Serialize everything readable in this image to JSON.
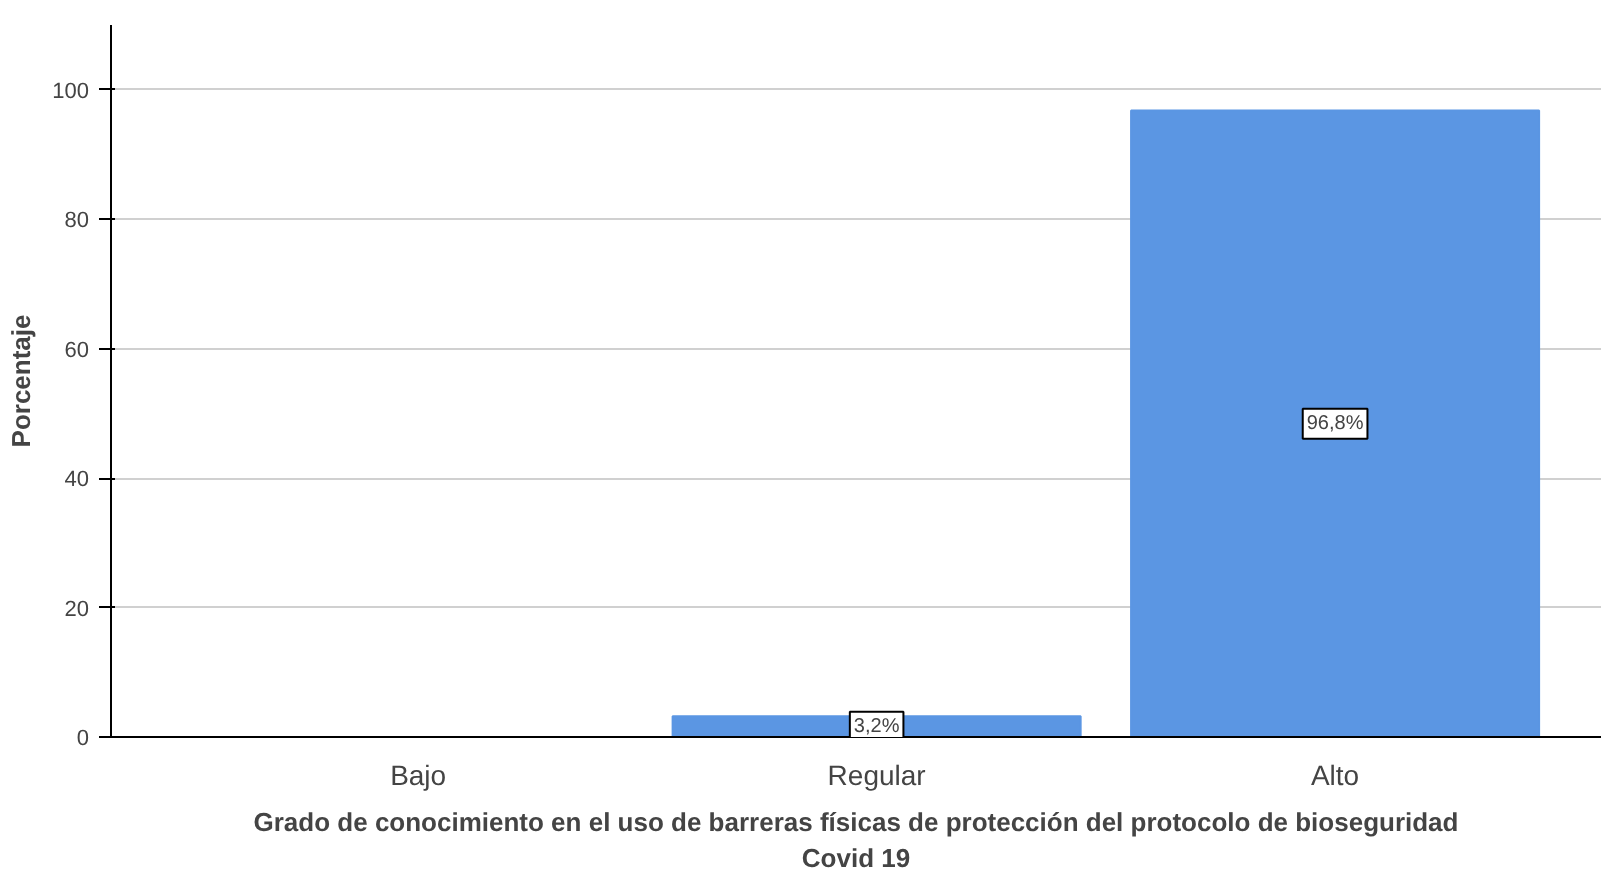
{
  "chart_data": {
    "type": "bar",
    "xlabel": "Grado de conocimiento en el uso de barreras físicas de protección del protocolo de bioseguridad\nCovid 19",
    "ylabel": "Porcentaje",
    "categories": [
      "Bajo",
      "Regular",
      "Alto"
    ],
    "values": [
      0,
      3.2,
      96.8
    ],
    "value_labels": [
      null,
      "3,2%",
      "96,8%"
    ],
    "color": "#5b96e3",
    "ylim": [
      0,
      110
    ],
    "yticks": [
      0,
      20,
      40,
      60,
      80,
      100
    ],
    "grid": "y"
  }
}
